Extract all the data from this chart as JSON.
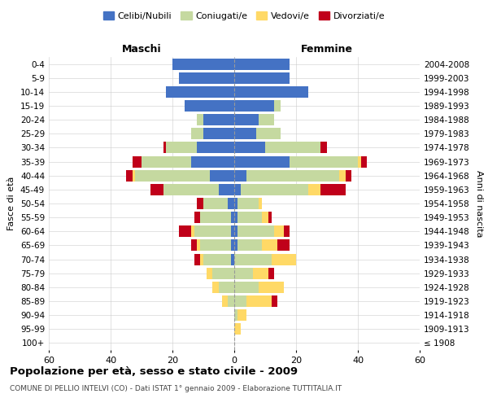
{
  "age_groups": [
    "100+",
    "95-99",
    "90-94",
    "85-89",
    "80-84",
    "75-79",
    "70-74",
    "65-69",
    "60-64",
    "55-59",
    "50-54",
    "45-49",
    "40-44",
    "35-39",
    "30-34",
    "25-29",
    "20-24",
    "15-19",
    "10-14",
    "5-9",
    "0-4"
  ],
  "birth_years": [
    "≤ 1908",
    "1909-1913",
    "1914-1918",
    "1919-1923",
    "1924-1928",
    "1929-1933",
    "1934-1938",
    "1939-1943",
    "1944-1948",
    "1949-1953",
    "1954-1958",
    "1959-1963",
    "1964-1968",
    "1969-1973",
    "1974-1978",
    "1979-1983",
    "1984-1988",
    "1989-1993",
    "1994-1998",
    "1999-2003",
    "2004-2008"
  ],
  "male": {
    "celibi": [
      0,
      0,
      0,
      0,
      0,
      0,
      1,
      1,
      1,
      1,
      2,
      5,
      8,
      14,
      12,
      10,
      10,
      16,
      22,
      18,
      20
    ],
    "coniugati": [
      0,
      0,
      0,
      2,
      5,
      7,
      9,
      10,
      12,
      10,
      8,
      18,
      24,
      16,
      10,
      4,
      2,
      0,
      0,
      0,
      0
    ],
    "vedovi": [
      0,
      0,
      0,
      2,
      2,
      2,
      1,
      1,
      1,
      0,
      0,
      0,
      1,
      0,
      0,
      0,
      0,
      0,
      0,
      0,
      0
    ],
    "divorziati": [
      0,
      0,
      0,
      0,
      0,
      0,
      2,
      2,
      4,
      2,
      2,
      4,
      2,
      3,
      1,
      0,
      0,
      0,
      0,
      0,
      0
    ]
  },
  "female": {
    "nubili": [
      0,
      0,
      0,
      0,
      0,
      0,
      0,
      1,
      1,
      1,
      1,
      2,
      4,
      18,
      10,
      7,
      8,
      13,
      24,
      18,
      18
    ],
    "coniugate": [
      0,
      0,
      1,
      4,
      8,
      6,
      12,
      8,
      12,
      8,
      7,
      22,
      30,
      22,
      18,
      8,
      5,
      2,
      0,
      0,
      0
    ],
    "vedove": [
      0,
      2,
      3,
      8,
      8,
      5,
      8,
      5,
      3,
      2,
      1,
      4,
      2,
      1,
      0,
      0,
      0,
      0,
      0,
      0,
      0
    ],
    "divorziate": [
      0,
      0,
      0,
      2,
      0,
      2,
      0,
      4,
      2,
      1,
      0,
      8,
      2,
      2,
      2,
      0,
      0,
      0,
      0,
      0,
      0
    ]
  },
  "colors": {
    "celibi": "#4472C4",
    "coniugati": "#C5D9A0",
    "vedovi": "#FFD966",
    "divorziati": "#C0001A"
  },
  "xlim": 60,
  "title": "Popolazione per età, sesso e stato civile - 2009",
  "subtitle": "COMUNE DI PELLIO INTELVI (CO) - Dati ISTAT 1° gennaio 2009 - Elaborazione TUTTITALIA.IT",
  "ylabel_left": "Fasce di età",
  "ylabel_right": "Anni di nascita",
  "xlabel_left": "Maschi",
  "xlabel_right": "Femmine",
  "bg_color": "#FFFFFF",
  "grid_color": "#CCCCCC"
}
